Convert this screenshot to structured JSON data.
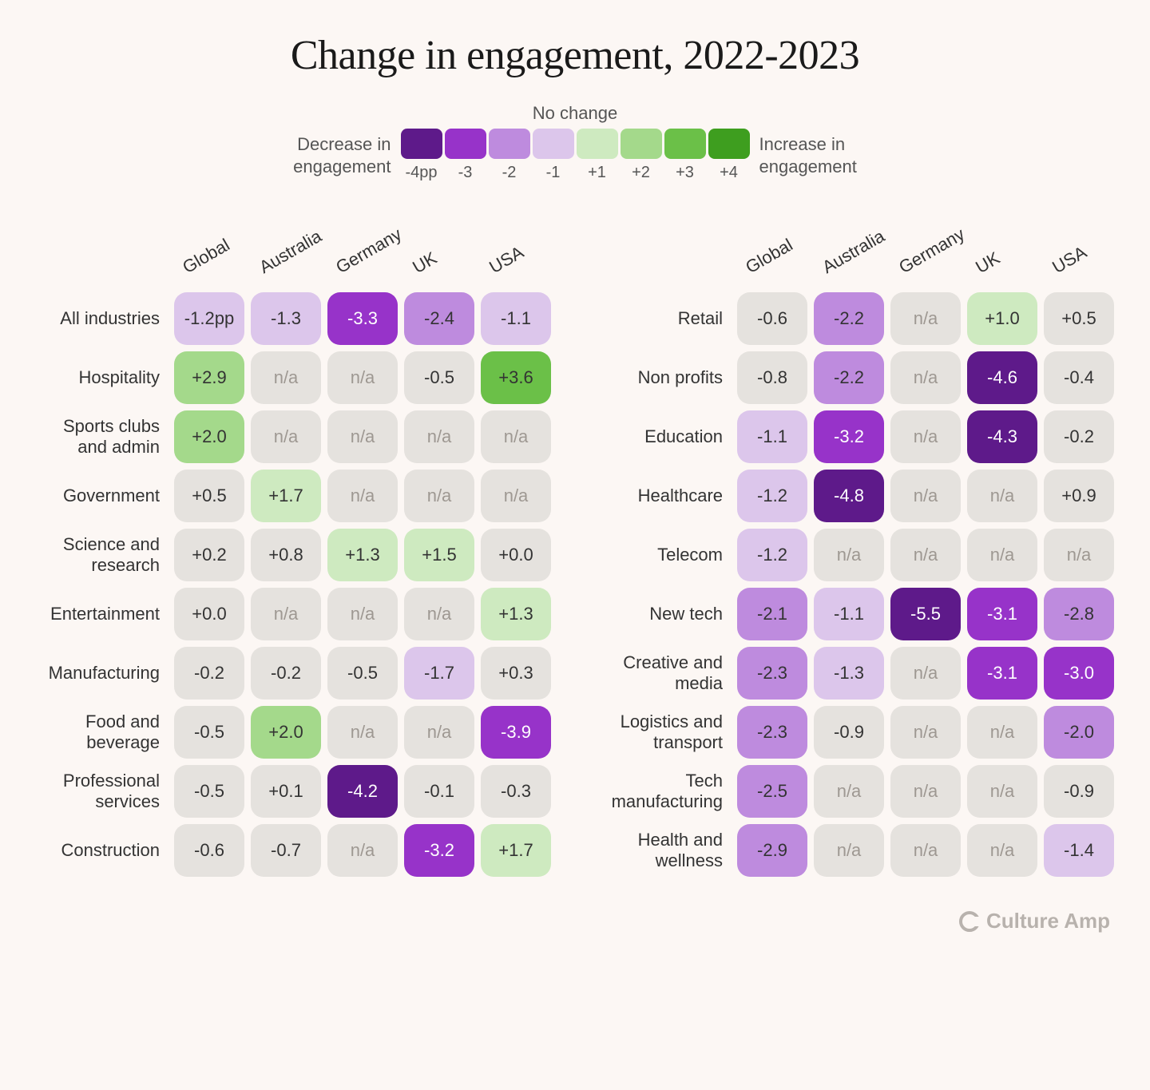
{
  "title": "Change in engagement, 2022-2023",
  "legend": {
    "no_change_label": "No change",
    "decrease_label": "Decrease in\nengagement",
    "increase_label": "Increase in\nengagement",
    "steps": [
      {
        "color": "#5e1a8a",
        "label": "-4pp"
      },
      {
        "color": "#9733c9",
        "label": "-3"
      },
      {
        "color": "#be8bde",
        "label": "-2"
      },
      {
        "color": "#dcc6eb",
        "label": "-1"
      },
      {
        "color": "#ceeac0",
        "label": "+1"
      },
      {
        "color": "#a4d98b",
        "label": "+2"
      },
      {
        "color": "#6bc048",
        "label": "+3"
      },
      {
        "color": "#3e9e1f",
        "label": "+4"
      }
    ]
  },
  "color_scale": {
    "na_bg": "#e5e2de",
    "na_text": "#9e9892",
    "zero_bg": "#e5e2de",
    "zero_text": "#333333",
    "neg4_bg": "#5e1a8a",
    "neg4_text": "#ffffff",
    "neg3_bg": "#9733c9",
    "neg3_text": "#ffffff",
    "neg2_bg": "#be8bde",
    "neg2_text": "#333333",
    "neg1_bg": "#dcc6eb",
    "neg1_text": "#333333",
    "pos1_bg": "#ceeac0",
    "pos1_text": "#333333",
    "pos2_bg": "#a4d98b",
    "pos2_text": "#333333",
    "pos3_bg": "#6bc048",
    "pos3_text": "#333333",
    "pos4_bg": "#3e9e1f",
    "pos4_text": "#ffffff"
  },
  "columns": [
    "Global",
    "Australia",
    "Germany",
    "UK",
    "USA"
  ],
  "left_rows": [
    {
      "label": "All industries",
      "v": [
        "-1.2pp",
        "-1.3",
        "-3.3",
        "-2.4",
        "-1.1"
      ]
    },
    {
      "label": "Hospitality",
      "v": [
        "+2.9",
        "n/a",
        "n/a",
        "-0.5",
        "+3.6"
      ]
    },
    {
      "label": "Sports clubs and admin",
      "v": [
        "+2.0",
        "n/a",
        "n/a",
        "n/a",
        "n/a"
      ]
    },
    {
      "label": "Government",
      "v": [
        "+0.5",
        "+1.7",
        "n/a",
        "n/a",
        "n/a"
      ]
    },
    {
      "label": "Science and research",
      "v": [
        "+0.2",
        "+0.8",
        "+1.3",
        "+1.5",
        "+0.0"
      ]
    },
    {
      "label": "Entertainment",
      "v": [
        "+0.0",
        "n/a",
        "n/a",
        "n/a",
        "+1.3"
      ]
    },
    {
      "label": "Manufacturing",
      "v": [
        "-0.2",
        "-0.2",
        "-0.5",
        "-1.7",
        "+0.3"
      ]
    },
    {
      "label": "Food and beverage",
      "v": [
        "-0.5",
        "+2.0",
        "n/a",
        "n/a",
        "-3.9"
      ]
    },
    {
      "label": "Professional services",
      "v": [
        "-0.5",
        "+0.1",
        "-4.2",
        "-0.1",
        "-0.3"
      ]
    },
    {
      "label": "Construction",
      "v": [
        "-0.6",
        "-0.7",
        "n/a",
        "-3.2",
        "+1.7"
      ]
    }
  ],
  "right_rows": [
    {
      "label": "Retail",
      "v": [
        "-0.6",
        "-2.2",
        "n/a",
        "+1.0",
        "+0.5"
      ]
    },
    {
      "label": "Non profits",
      "v": [
        "-0.8",
        "-2.2",
        "n/a",
        "-4.6",
        "-0.4"
      ]
    },
    {
      "label": "Education",
      "v": [
        "-1.1",
        "-3.2",
        "n/a",
        "-4.3",
        "-0.2"
      ]
    },
    {
      "label": "Healthcare",
      "v": [
        "-1.2",
        "-4.8",
        "n/a",
        "n/a",
        "+0.9"
      ]
    },
    {
      "label": "Telecom",
      "v": [
        "-1.2",
        "n/a",
        "n/a",
        "n/a",
        "n/a"
      ]
    },
    {
      "label": "New tech",
      "v": [
        "-2.1",
        "-1.1",
        "-5.5",
        "-3.1",
        "-2.8"
      ]
    },
    {
      "label": "Creative and media",
      "v": [
        "-2.3",
        "-1.3",
        "n/a",
        "-3.1",
        "-3.0"
      ]
    },
    {
      "label": "Logistics and transport",
      "v": [
        "-2.3",
        "-0.9",
        "n/a",
        "n/a",
        "-2.0"
      ]
    },
    {
      "label": "Tech manufacturing",
      "v": [
        "-2.5",
        "n/a",
        "n/a",
        "n/a",
        "-0.9"
      ]
    },
    {
      "label": "Health and wellness",
      "v": [
        "-2.9",
        "n/a",
        "n/a",
        "n/a",
        "-1.4"
      ]
    }
  ],
  "footer_brand": "Culture Amp"
}
